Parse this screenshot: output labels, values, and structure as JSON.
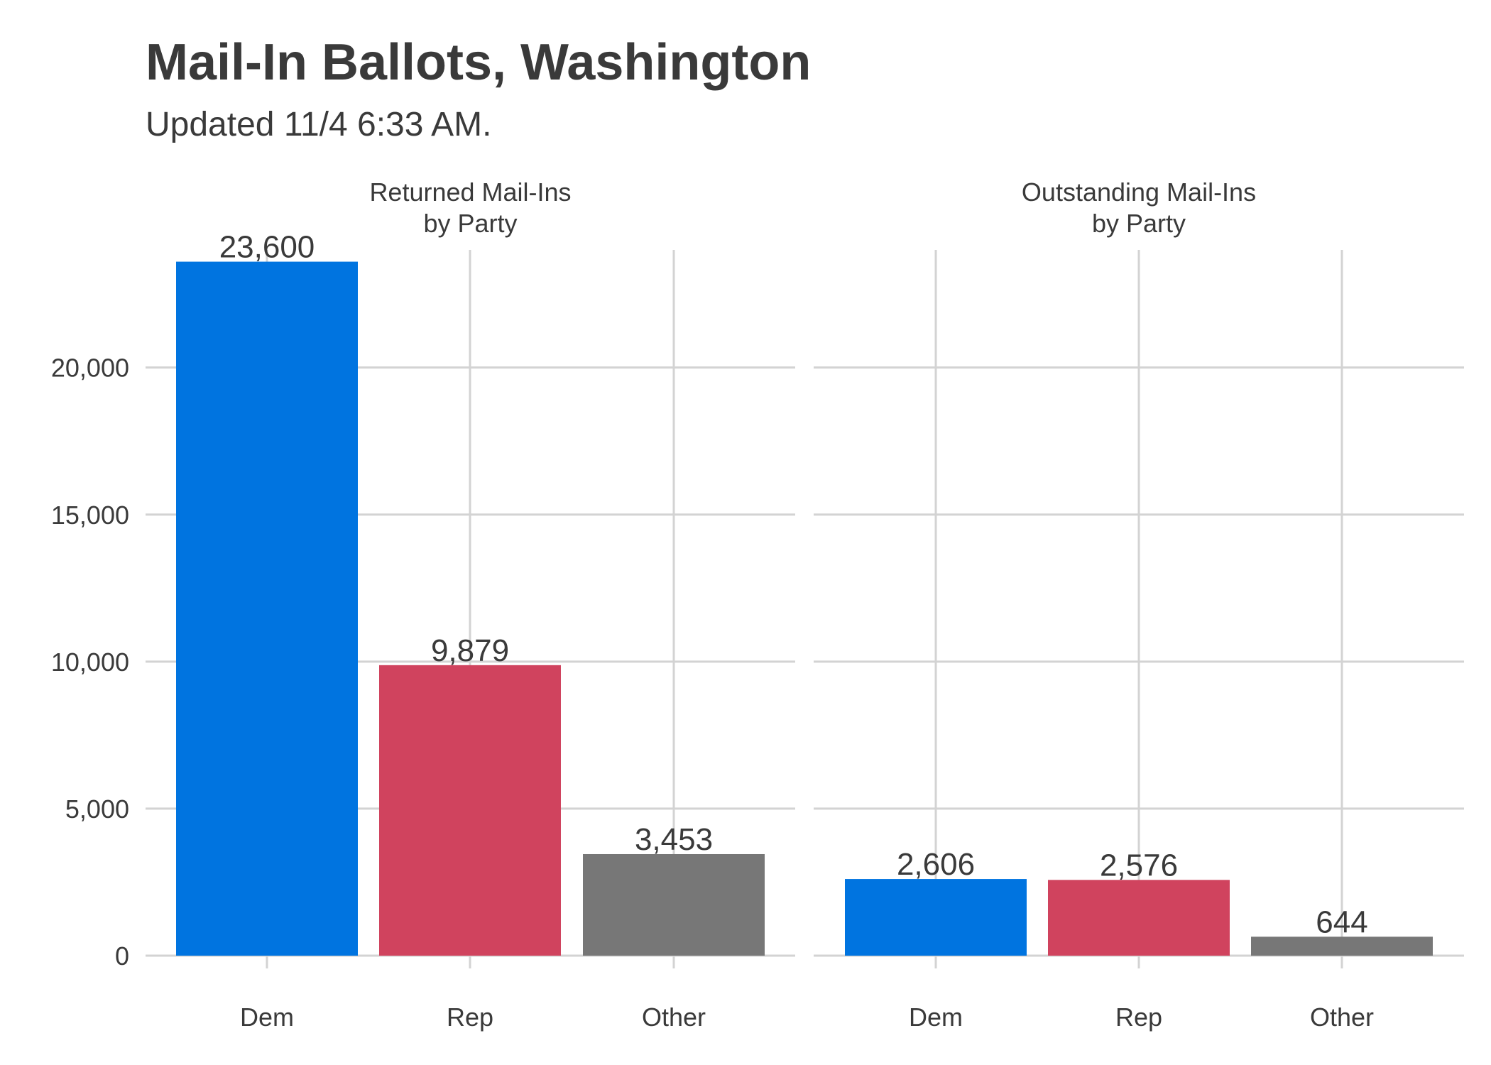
{
  "chart_data": {
    "type": "bar",
    "title": "Mail-In Ballots, Washington",
    "subtitle": "Updated 11/4 6:33 AM.",
    "ylim": [
      0,
      24000
    ],
    "y_ticks": [
      0,
      5000,
      10000,
      15000,
      20000
    ],
    "y_tick_labels": [
      "0",
      "5,000",
      "10,000",
      "15,000",
      "20,000"
    ],
    "categories": [
      "Dem",
      "Rep",
      "Other"
    ],
    "colors": {
      "Dem": "#0074e0",
      "Rep": "#d0435e",
      "Other": "#777777"
    },
    "grid": true,
    "panels": [
      {
        "title_lines": [
          "Returned Mail-Ins",
          "by Party"
        ],
        "values": [
          23600,
          9879,
          3453
        ],
        "value_labels": [
          "23,600",
          "9,879",
          "3,453"
        ]
      },
      {
        "title_lines": [
          "Outstanding Mail-Ins",
          "by Party"
        ],
        "values": [
          2606,
          2576,
          644
        ],
        "value_labels": [
          "2,606",
          "2,576",
          "644"
        ]
      }
    ]
  }
}
